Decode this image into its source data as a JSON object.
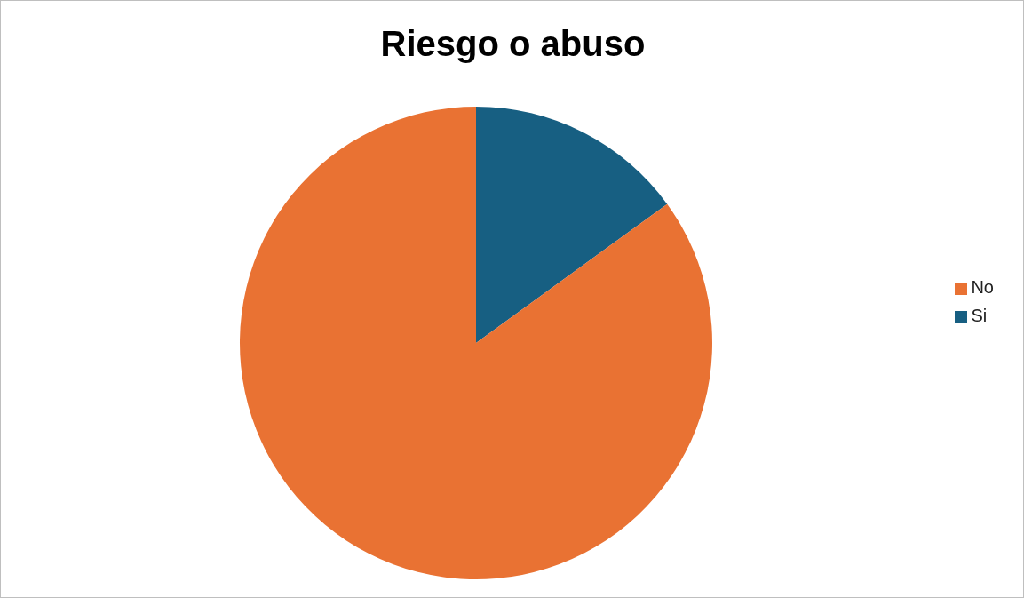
{
  "chart_data": {
    "type": "pie",
    "title": "Riesgo o abuso",
    "categories": [
      "Si",
      "No"
    ],
    "values": [
      15,
      85
    ],
    "colors": [
      "#175f82",
      "#e97233"
    ],
    "legend": "right"
  }
}
